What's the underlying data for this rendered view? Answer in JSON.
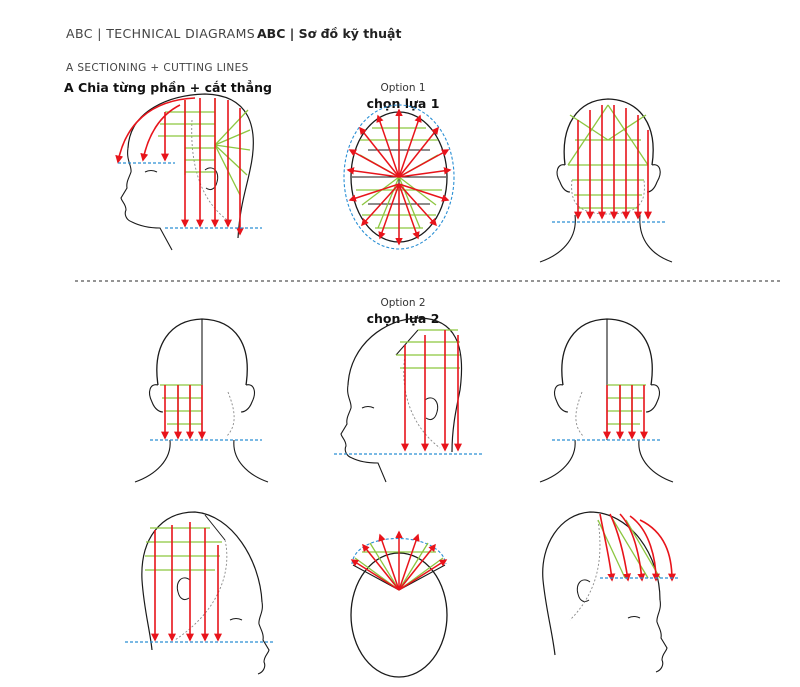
{
  "header": {
    "left": "ABC  |  TECHNICAL DIAGRAMS",
    "right": "ABC | Sơ đồ kỹ thuật"
  },
  "section": {
    "label": "A  SECTIONING + CUTTING LINES",
    "title": "A Chia từng phần + cắt thẳng"
  },
  "options": [
    {
      "label": "Option 1",
      "title": "chọn lựa 1"
    },
    {
      "label": "Option 2",
      "title": "chọn lựa 2"
    }
  ],
  "colors": {
    "arrow": "#e8141b",
    "section_line": "#8cc63f",
    "guide_line": "#2a8fd4",
    "outline": "#1a1a1a",
    "divider": "#555555"
  }
}
